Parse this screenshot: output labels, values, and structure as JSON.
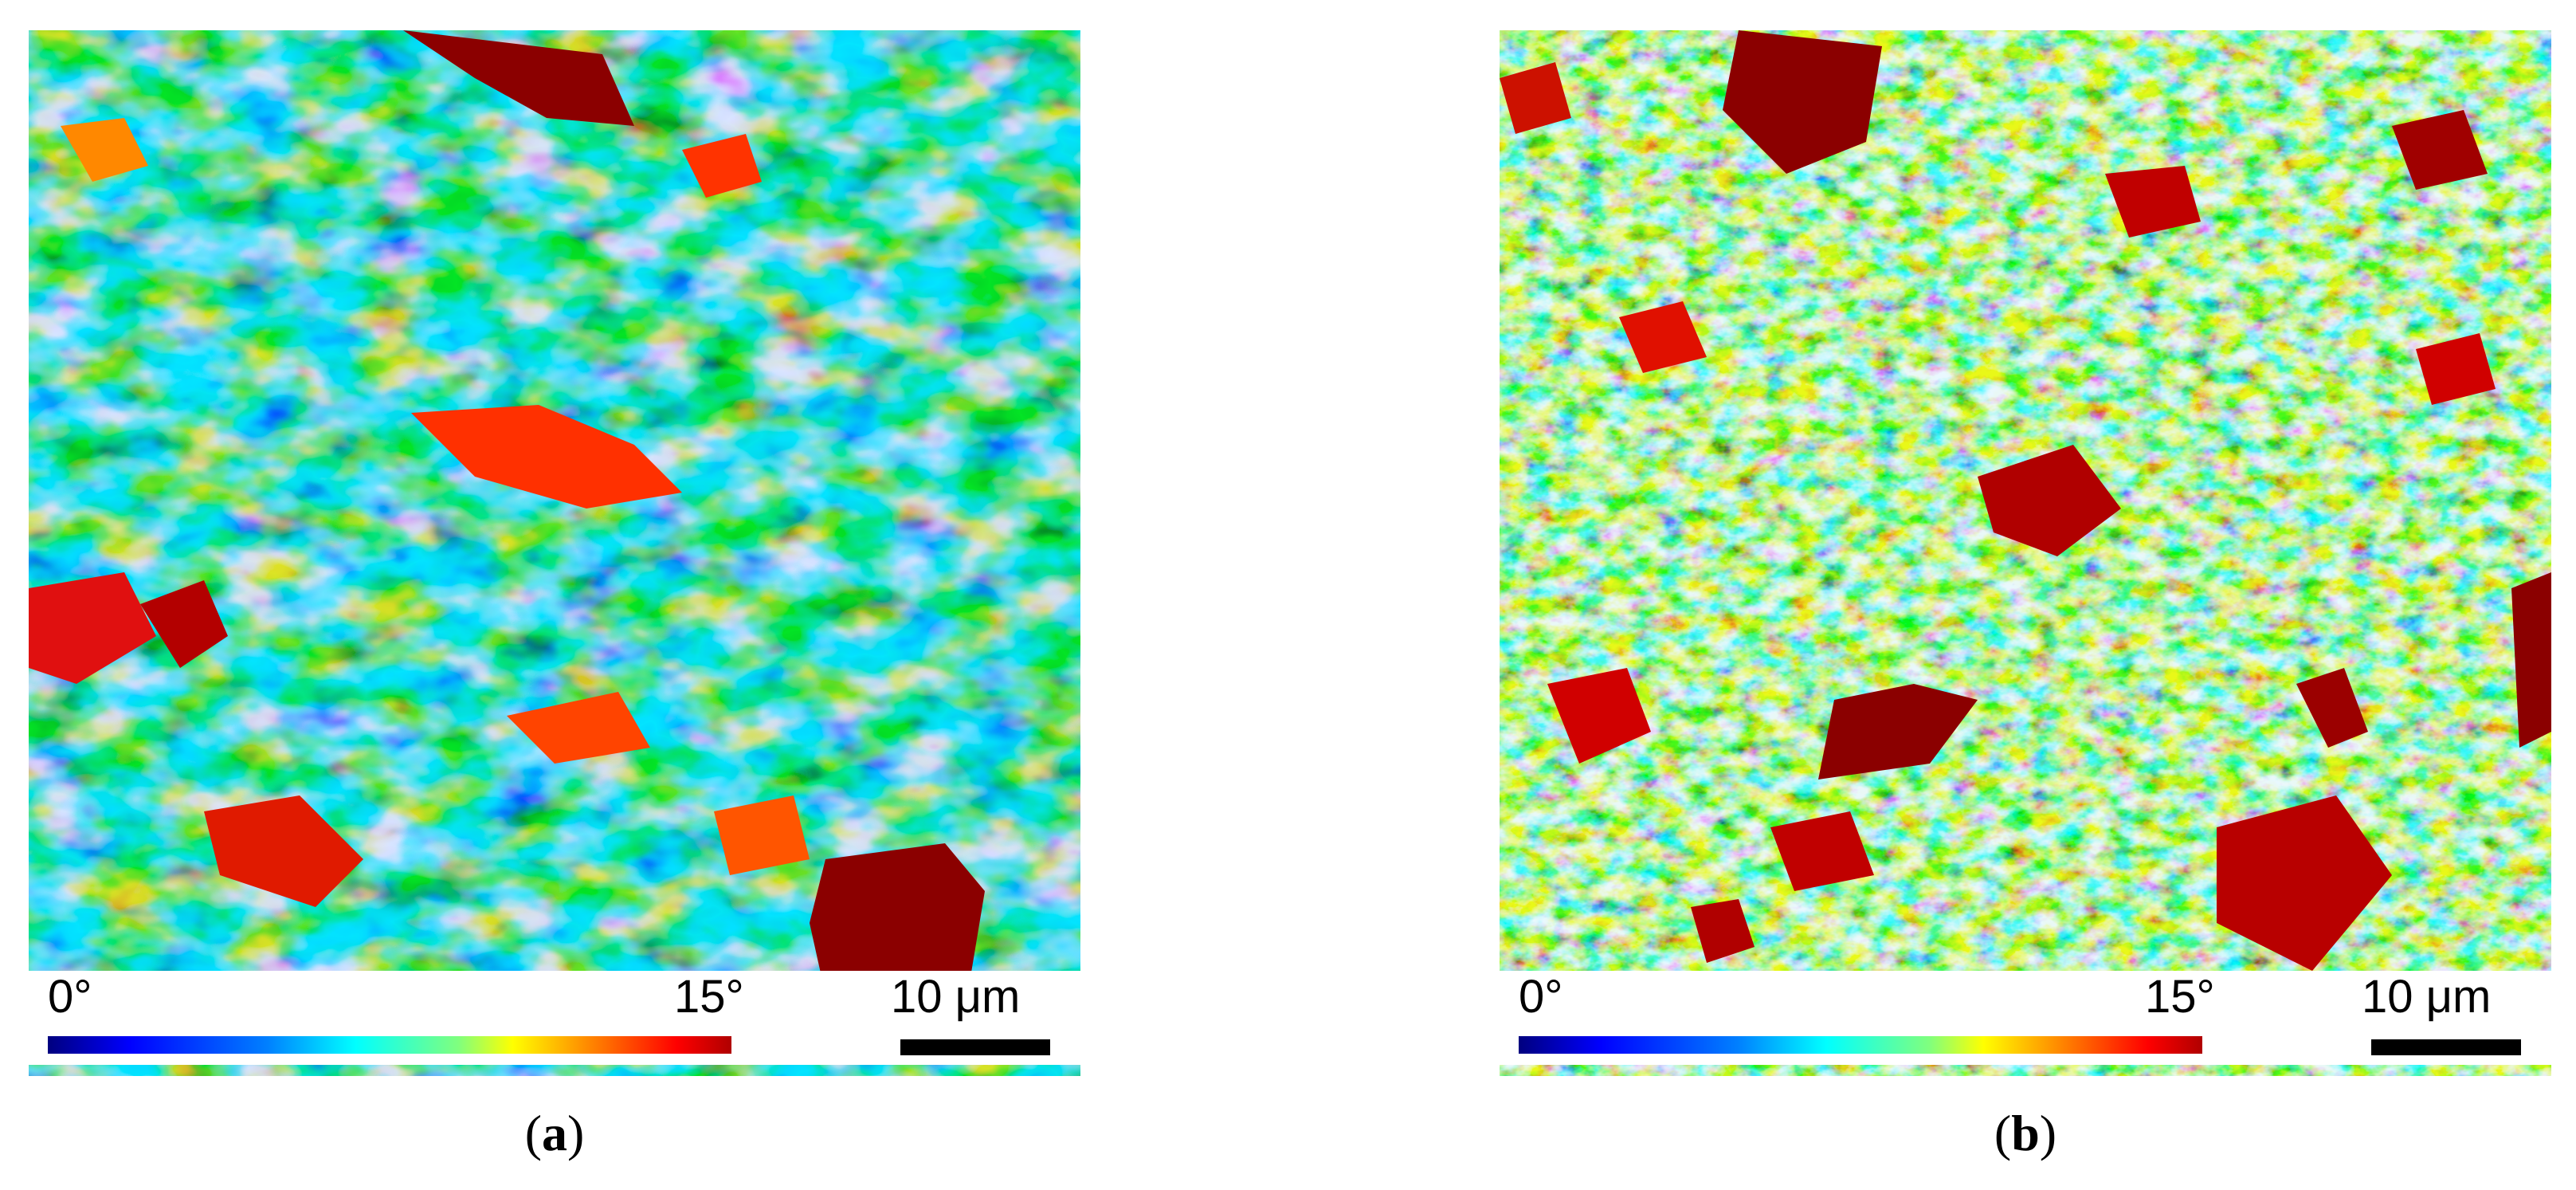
{
  "panels": [
    {
      "id": "a",
      "caption_letter": "a",
      "legend": {
        "min_label": "0°",
        "max_label": "15°",
        "scale_bar_label": "10 μm"
      },
      "colormap": [
        "#00007f",
        "#0000ff",
        "#007fff",
        "#00ffff",
        "#7fff7f",
        "#ffff00",
        "#ff7f00",
        "#ff0000",
        "#7f0000"
      ]
    },
    {
      "id": "b",
      "caption_letter": "b",
      "legend": {
        "min_label": "0°",
        "max_label": "15°",
        "scale_bar_label": "10 μm"
      },
      "colormap": [
        "#00007f",
        "#0000ff",
        "#007fff",
        "#00ffff",
        "#7fff7f",
        "#ffff00",
        "#ff7f00",
        "#ff0000",
        "#7f0000"
      ]
    }
  ]
}
